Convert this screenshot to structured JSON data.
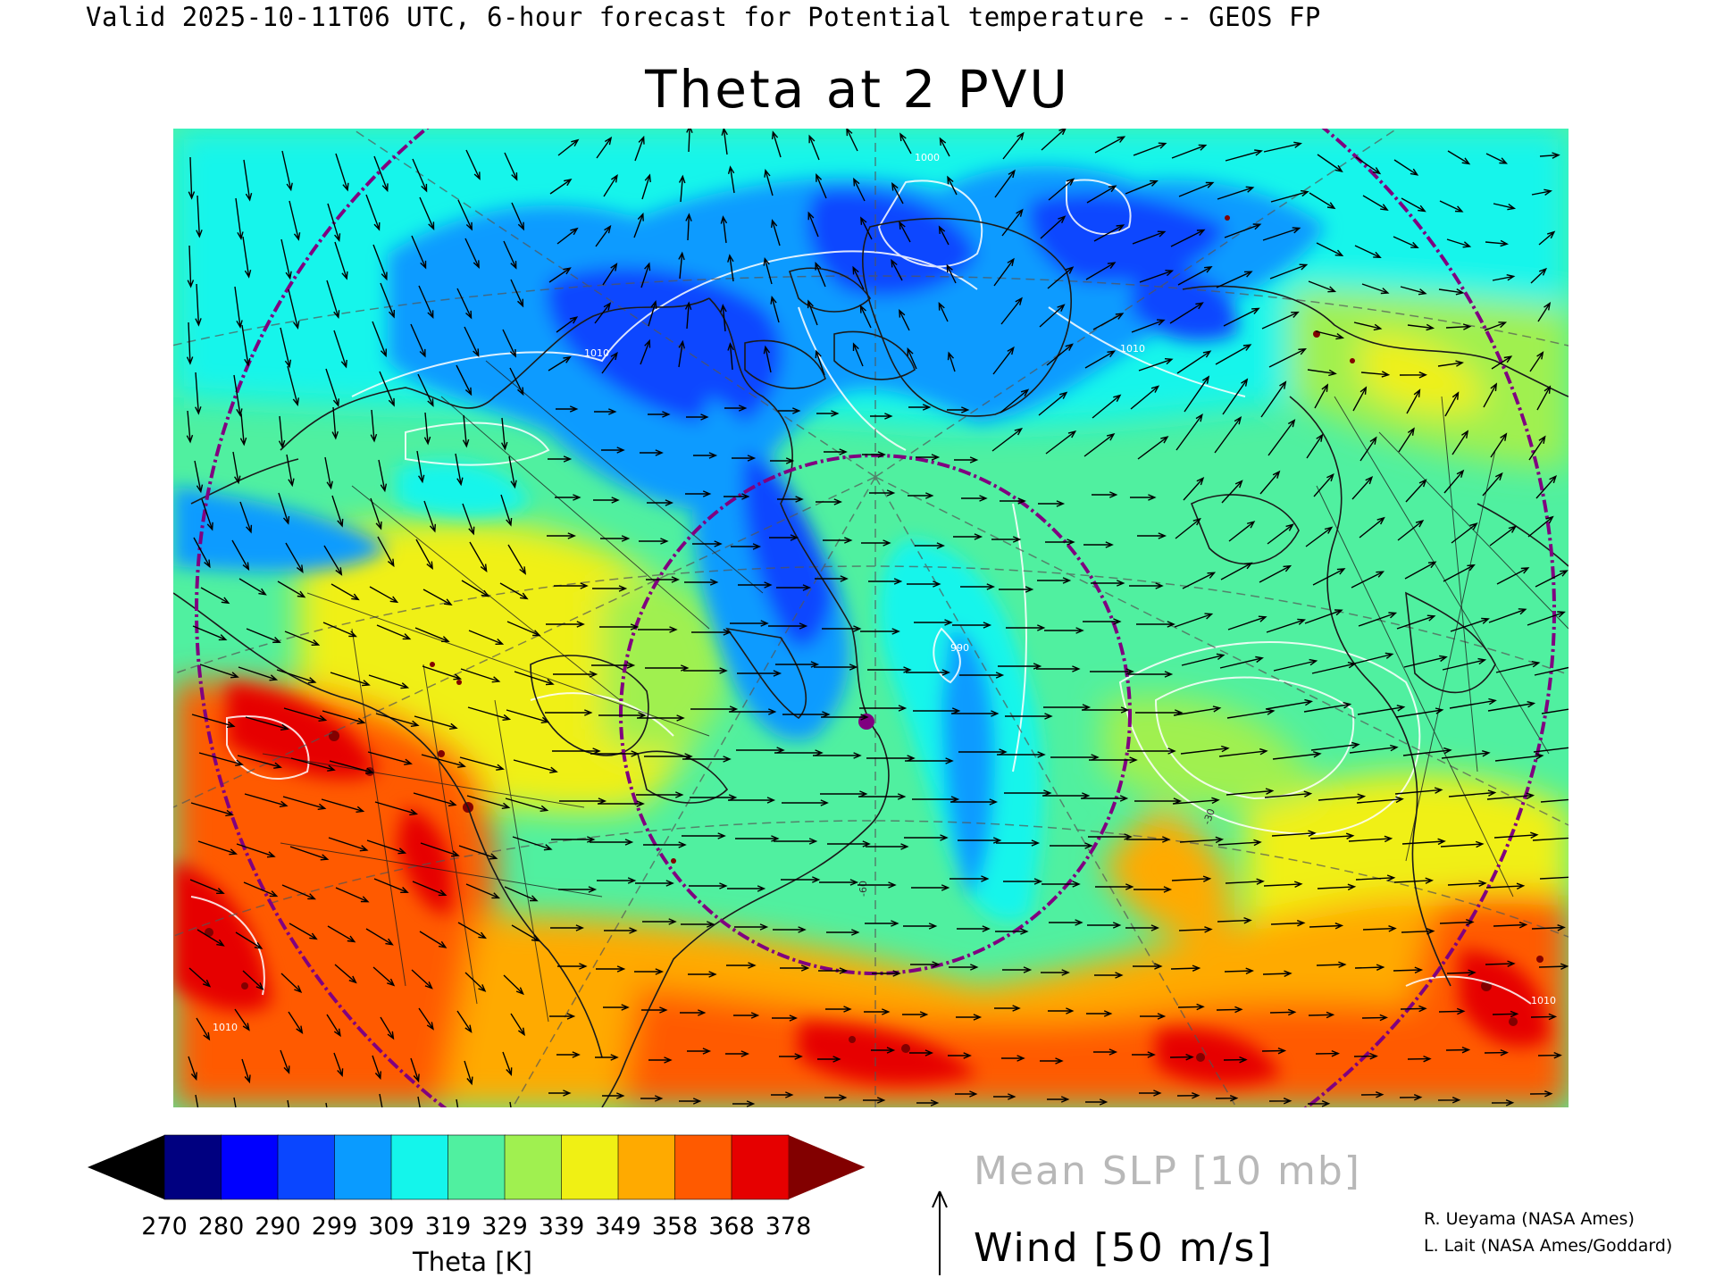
{
  "header": {
    "valid_line": "Valid 2025-10-11T06 UTC, 6-hour forecast for Potential temperature -- GEOS FP"
  },
  "map": {
    "title": "Theta at 2 PVU",
    "projection": "polar stereographic, North Atlantic / North America",
    "features": [
      "theta-field",
      "mean-slp-contours",
      "wind-vectors",
      "coastlines",
      "graticule",
      "purple-dashed-circles",
      "purple-location-dot"
    ],
    "contour_labels": [
      "1010",
      "1010",
      "1010",
      "1010",
      "1000",
      "990",
      "-60",
      "-30"
    ]
  },
  "colorbar": {
    "label": "Theta [K]",
    "ticks": [
      "270",
      "280",
      "290",
      "299",
      "309",
      "319",
      "329",
      "339",
      "349",
      "358",
      "368",
      "378"
    ],
    "colors": [
      "#000000",
      "#000080",
      "#0000ff",
      "#0a46ff",
      "#0a9bff",
      "#14f5eb",
      "#50f0a0",
      "#a0f050",
      "#f0f014",
      "#ffaa00",
      "#ff5a00",
      "#e60000",
      "#820000"
    ]
  },
  "legend": {
    "slp_label": "Mean SLP [10 mb]",
    "wind_label": "Wind [50 m/s]",
    "wind_icon": "up-arrow-icon"
  },
  "credits": {
    "line1": "R. Ueyama (NASA Ames)",
    "line2": "L. Lait (NASA Ames/Goddard)"
  }
}
